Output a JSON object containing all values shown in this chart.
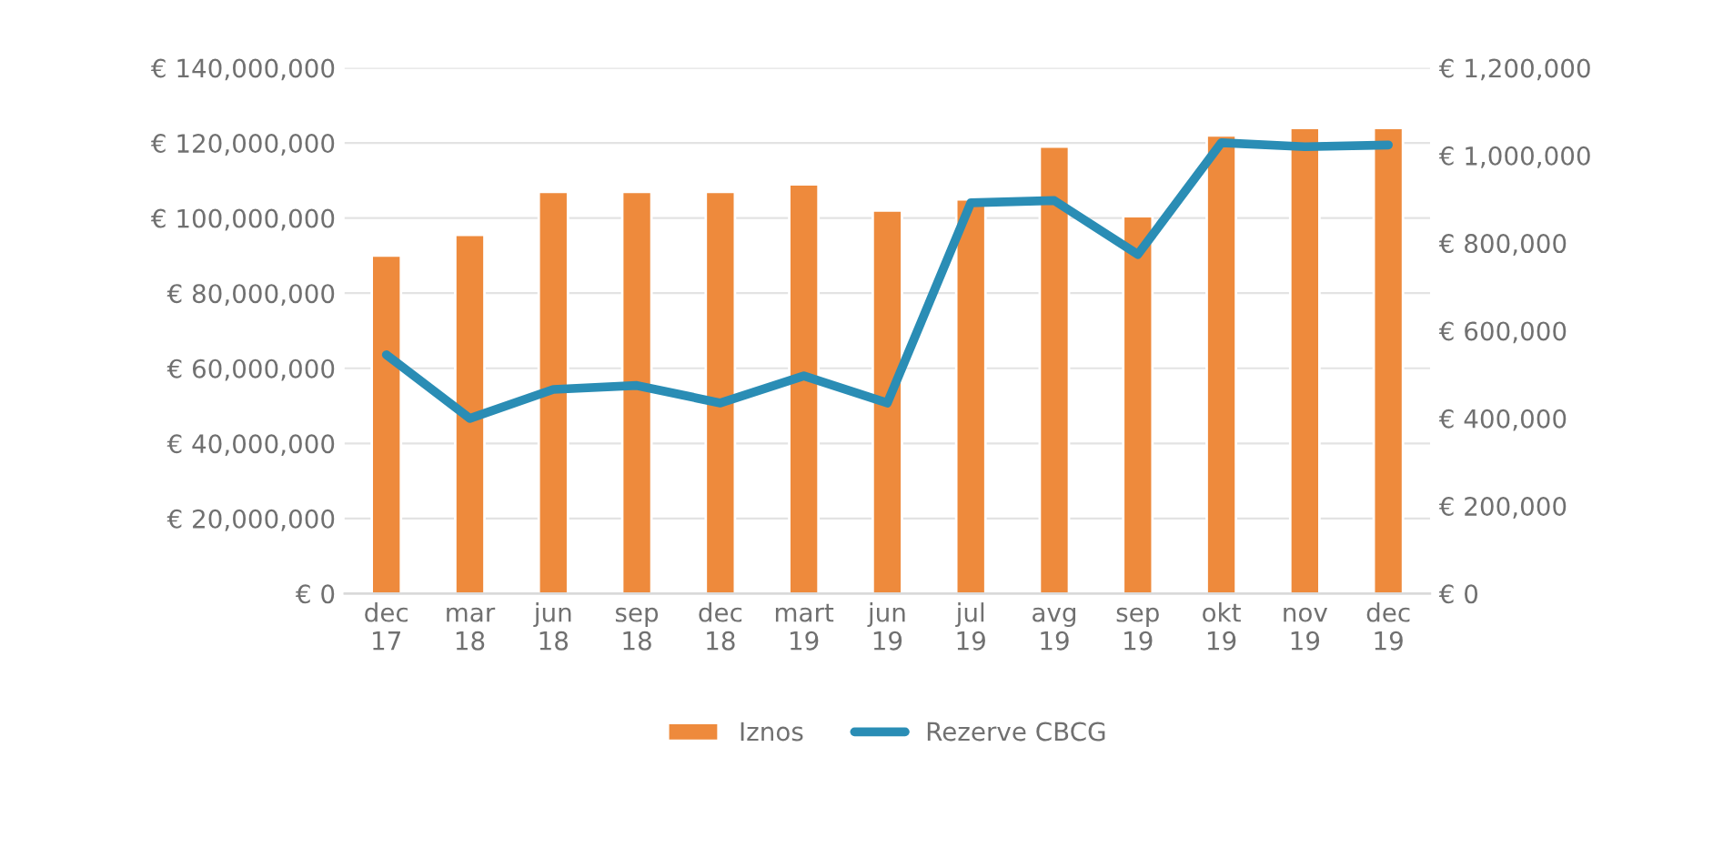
{
  "chart_data": {
    "type": "bar",
    "categories": [
      "dec\n17",
      "mar\n18",
      "jun\n18",
      "sep\n18",
      "dec\n18",
      "mart\n19",
      "jun\n19",
      "jul\n19",
      "avg\n19",
      "sep\n19",
      "okt\n19",
      "nov\n19",
      "dec\n19"
    ],
    "series": [
      {
        "name": "Iznos",
        "color": "#ee8a3c",
        "values": [
          90000000,
          95500000,
          107000000,
          107000000,
          107000000,
          109000000,
          102000000,
          105000000,
          119000000,
          100500000,
          122000000,
          124000000,
          124000000
        ]
      },
      {
        "name": "Rezerve CBCG",
        "type": "line",
        "axis": "y2",
        "color": "#2a8db5",
        "values": [
          545000,
          400000,
          466000,
          475000,
          435000,
          497000,
          435000,
          892000,
          897000,
          774000,
          1029000,
          1020000,
          1024000
        ]
      }
    ],
    "ylim": [
      0,
      140000000
    ],
    "yticks": [
      {
        "value": 0,
        "label": "€ 0"
      },
      {
        "value": 20000000,
        "label": "€ 20,000,000"
      },
      {
        "value": 40000000,
        "label": "€ 40,000,000"
      },
      {
        "value": 60000000,
        "label": "€ 60,000,000"
      },
      {
        "value": 80000000,
        "label": "€ 80,000,000"
      },
      {
        "value": 100000000,
        "label": "€ 100,000,000"
      },
      {
        "value": 120000000,
        "label": "€ 120,000,000"
      },
      {
        "value": 140000000,
        "label": "€ 140,000,000"
      }
    ],
    "y2lim": [
      0,
      1200000
    ],
    "y2ticks": [
      {
        "value": 0,
        "label": "€ 0"
      },
      {
        "value": 200000,
        "label": "€ 200,000"
      },
      {
        "value": 400000,
        "label": "€ 400,000"
      },
      {
        "value": 600000,
        "label": "€ 600,000"
      },
      {
        "value": 800000,
        "label": "€ 800,000"
      },
      {
        "value": 1000000,
        "label": "€ 1,000,000"
      },
      {
        "value": 1200000,
        "label": "€ 1,200,000"
      }
    ],
    "grid": "y",
    "legend": "bottom",
    "marker": "none",
    "line_style": "solid"
  }
}
